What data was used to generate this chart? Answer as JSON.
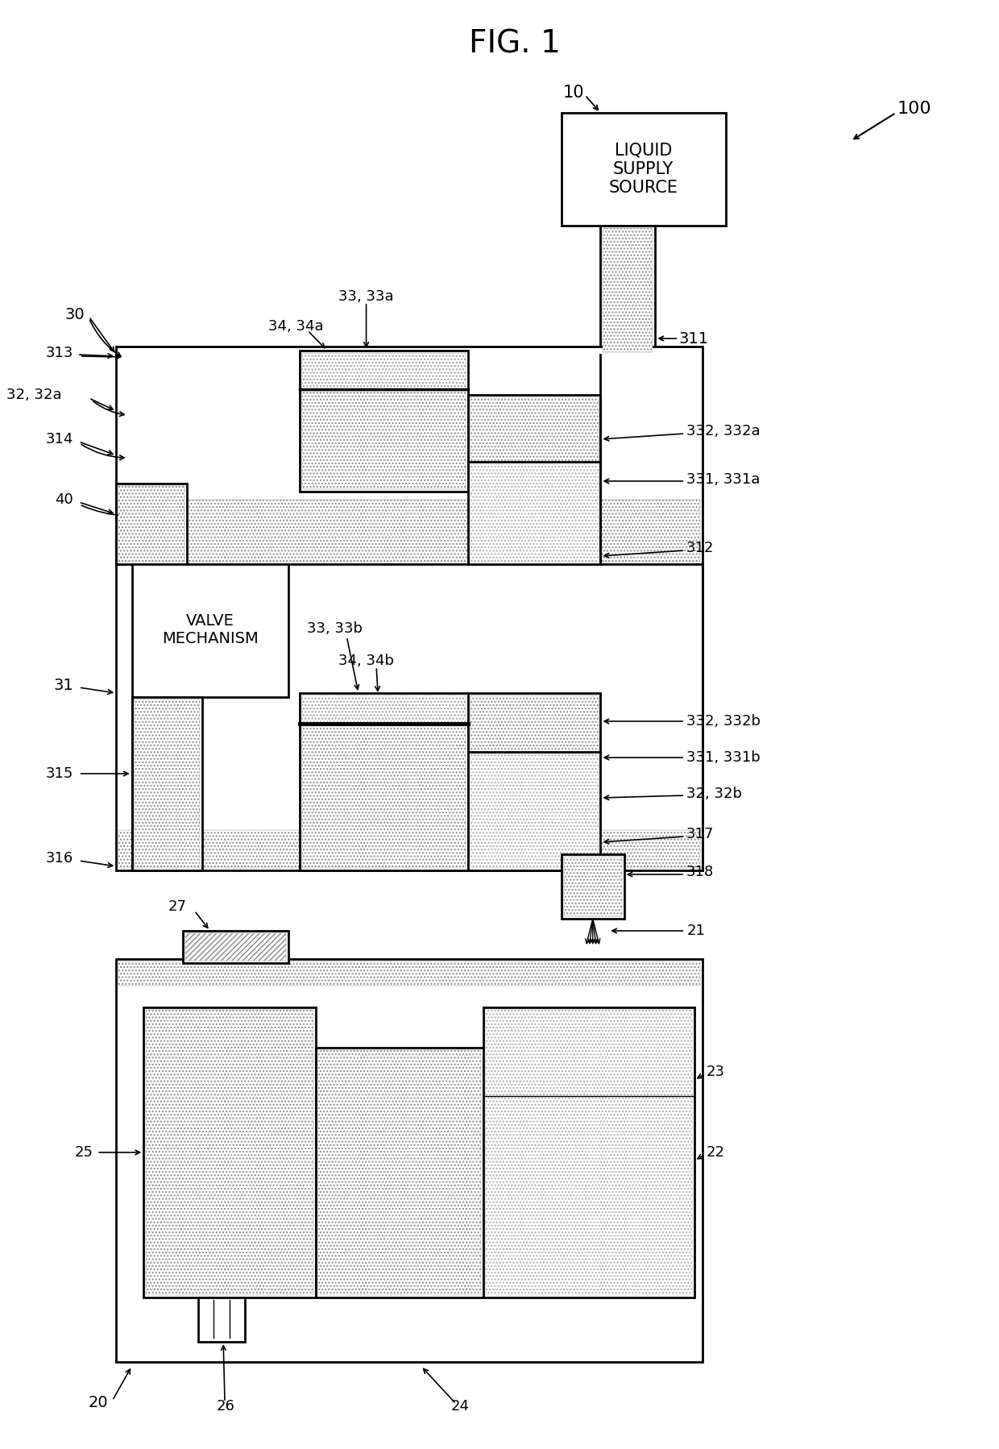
{
  "title": "FIG. 1",
  "bg_color": "#ffffff",
  "line_color": "#000000",
  "fig_width": 12.4,
  "fig_height": 17.98,
  "labels": {
    "title": "FIG. 1",
    "ref_100": "100",
    "ref_10": "10",
    "ref_30": "30",
    "ref_313": "313",
    "ref_32_32a": "32, 32a",
    "ref_314": "314",
    "ref_40": "40",
    "ref_33_33a": "33, 33a",
    "ref_34_34a": "34, 34a",
    "ref_311": "311",
    "ref_332_332a": "332, 332a",
    "ref_331_331a": "331, 331a",
    "ref_312": "312",
    "ref_31": "31",
    "ref_315": "315",
    "ref_316": "316",
    "ref_33_33b": "33, 33b",
    "ref_34_34b": "34, 34b",
    "ref_332_332b": "332, 332b",
    "ref_331_331b": "331, 331b",
    "ref_32_32b": "32, 32b",
    "ref_317": "317",
    "ref_318": "318",
    "ref_21": "21",
    "ref_27": "27",
    "ref_25": "25",
    "ref_23": "23",
    "ref_22": "22",
    "ref_20": "20",
    "ref_26": "26",
    "ref_24": "24",
    "liquid_supply": "LIQUID\nSUPPLY\nSOURCE",
    "valve_mechanism": "VALVE\nMECHANISM"
  }
}
